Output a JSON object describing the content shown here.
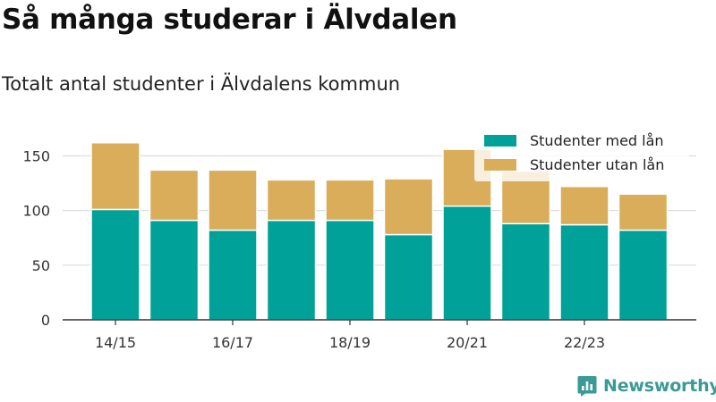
{
  "title": "Så många studerar i Älvdalen",
  "subtitle": "Totalt antal studenter i Älvdalens kommun",
  "brand": {
    "name": "Newsworthy",
    "color": "#3a9a96",
    "icon": "newsworthy-logo-icon"
  },
  "colors": {
    "with_loan": "#00a198",
    "without_loan": "#d9ad5a",
    "grid": "#dddddd",
    "axis": "#333333"
  },
  "chart_data": {
    "type": "bar",
    "stacked": true,
    "categories": [
      "14/15",
      "15/16",
      "16/17",
      "17/18",
      "18/19",
      "19/20",
      "20/21",
      "21/22",
      "22/23",
      "23/24"
    ],
    "tick_labels": [
      "14/15",
      "",
      "16/17",
      "",
      "18/19",
      "",
      "20/21",
      "",
      "22/23",
      ""
    ],
    "series": [
      {
        "name": "Studenter med lån",
        "color": "#00a198",
        "values": [
          101,
          91,
          82,
          91,
          91,
          78,
          104,
          88,
          87,
          82
        ]
      },
      {
        "name": "Studenter utan lån",
        "color": "#d9ad5a",
        "values": [
          61,
          46,
          55,
          37,
          37,
          51,
          52,
          48,
          35,
          33
        ]
      }
    ],
    "y_ticks": [
      0,
      50,
      100,
      150
    ],
    "ylim": [
      0,
      170
    ],
    "xlabel": "",
    "ylabel": "",
    "grid": true,
    "legend_position": "top-right"
  }
}
